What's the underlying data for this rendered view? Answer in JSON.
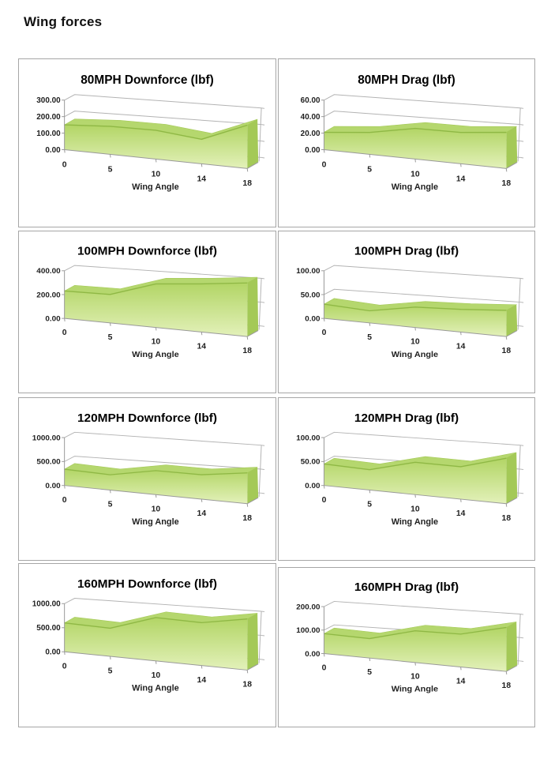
{
  "page": {
    "title": "Wing forces"
  },
  "colors": {
    "area_top": "#b2d565",
    "area_bottom": "#e3f1ba",
    "ribbon": "#b5d76e",
    "side_face": "#a4c957",
    "front_edge": "#8fb845",
    "gridline": "#b3b3b3",
    "axis": "#999999",
    "text": "#1f1f1f"
  },
  "chart_data": [
    {
      "type": "area",
      "title": "80MPH Downforce (lbf)",
      "xlabel": "Wing Angle",
      "categories": [
        "0",
        "5",
        "10",
        "14",
        "18"
      ],
      "values": [
        150,
        160,
        155,
        125,
        210
      ],
      "yticks": [
        "0.00",
        "100.00",
        "200.00",
        "300.00"
      ],
      "ymax": 300,
      "ylim": [
        0,
        300
      ],
      "grid": true,
      "legend": false
    },
    {
      "type": "area",
      "title": "80MPH Drag (lbf)",
      "xlabel": "Wing Angle",
      "categories": [
        "0",
        "5",
        "10",
        "14",
        "18"
      ],
      "values": [
        21,
        25,
        33,
        32,
        35
      ],
      "yticks": [
        "0.00",
        "20.00",
        "40.00",
        "60.00"
      ],
      "ymax": 60,
      "ylim": [
        0,
        60
      ],
      "grid": true,
      "legend": false
    },
    {
      "type": "area",
      "title": "100MPH Downforce (lbf)",
      "xlabel": "Wing Angle",
      "categories": [
        "0",
        "5",
        "10",
        "14",
        "18"
      ],
      "values": [
        230,
        225,
        325,
        340,
        360
      ],
      "yticks": [
        "0.00",
        "200.00",
        "400.00"
      ],
      "ymax": 400,
      "ylim": [
        0,
        400
      ],
      "grid": true,
      "legend": false
    },
    {
      "type": "area",
      "title": "100MPH Drag (lbf)",
      "xlabel": "Wing Angle",
      "categories": [
        "0",
        "5",
        "10",
        "14",
        "18"
      ],
      "values": [
        30,
        24,
        38,
        40,
        44
      ],
      "yticks": [
        "0.00",
        "50.00",
        "100.00"
      ],
      "ymax": 100,
      "ylim": [
        0,
        100
      ],
      "grid": true,
      "legend": false
    },
    {
      "type": "area",
      "title": "120MPH Downforce (lbf)",
      "xlabel": "Wing Angle",
      "categories": [
        "0",
        "5",
        "10",
        "14",
        "18"
      ],
      "values": [
        340,
        300,
        445,
        430,
        515
      ],
      "yticks": [
        "0.00",
        "500.00",
        "1000.00"
      ],
      "ymax": 1000,
      "ylim": [
        0,
        1000
      ],
      "grid": true,
      "legend": false
    },
    {
      "type": "area",
      "title": "120MPH Drag (lbf)",
      "xlabel": "Wing Angle",
      "categories": [
        "0",
        "5",
        "10",
        "14",
        "18"
      ],
      "values": [
        45,
        40,
        60,
        57,
        76
      ],
      "yticks": [
        "0.00",
        "50.00",
        "100.00"
      ],
      "ymax": 100,
      "ylim": [
        0,
        100
      ],
      "grid": true,
      "legend": false
    },
    {
      "type": "area",
      "title": "160MPH Downforce (lbf)",
      "xlabel": "Wing Angle",
      "categories": [
        "0",
        "5",
        "10",
        "14",
        "18"
      ],
      "values": [
        600,
        550,
        800,
        750,
        850
      ],
      "yticks": [
        "0.00",
        "500.00",
        "1000.00"
      ],
      "ymax": 1000,
      "ylim": [
        0,
        1000
      ],
      "grid": true,
      "legend": false
    },
    {
      "type": "area",
      "title": "160MPH Drag (lbf)",
      "xlabel": "Wing Angle",
      "categories": [
        "0",
        "5",
        "10",
        "14",
        "18"
      ],
      "values": [
        85,
        78,
        120,
        118,
        150
      ],
      "yticks": [
        "0.00",
        "100.00",
        "200.00"
      ],
      "ymax": 200,
      "ylim": [
        0,
        200
      ],
      "grid": true,
      "legend": false
    }
  ]
}
